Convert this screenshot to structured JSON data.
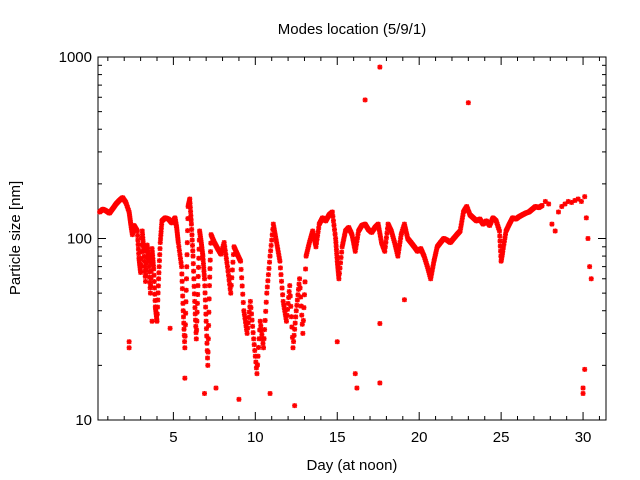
{
  "chart_data": {
    "type": "scatter",
    "title": "Modes location (5/9/1)",
    "xlabel": "Day (at noon)",
    "ylabel": "Particle size [nm]",
    "xlim": [
      0.4,
      31.4
    ],
    "ylim": [
      10,
      1000
    ],
    "y_scale": "log",
    "x_ticks": [
      5,
      10,
      15,
      20,
      25,
      30
    ],
    "x_tick_labels": [
      "5",
      "10",
      "15",
      "20",
      "25",
      "30"
    ],
    "y_ticks": [
      10,
      100,
      1000
    ],
    "y_tick_labels": [
      "10",
      "100",
      "1000"
    ],
    "grid": false,
    "legend": "none",
    "marker_color": "#ff0000",
    "series": [
      {
        "points": [
          [
            0.5,
            140
          ],
          [
            0.7,
            145
          ],
          [
            0.9,
            142
          ],
          [
            1.1,
            138
          ],
          [
            1.3,
            146
          ],
          [
            1.5,
            155
          ],
          [
            1.7,
            162
          ],
          [
            1.9,
            168
          ],
          [
            2.1,
            158
          ],
          [
            2.3,
            140
          ],
          [
            2.4,
            120
          ],
          [
            2.5,
            105
          ],
          [
            2.6,
            118
          ],
          [
            2.8,
            110
          ],
          [
            2.9,
            78
          ],
          [
            3.0,
            65
          ],
          [
            3.1,
            110
          ],
          [
            3.2,
            85
          ],
          [
            3.3,
            58
          ],
          [
            3.4,
            92
          ],
          [
            3.5,
            75
          ],
          [
            3.6,
            50
          ],
          [
            3.7,
            88
          ],
          [
            3.8,
            68
          ],
          [
            3.9,
            42
          ],
          [
            4.0,
            35
          ],
          [
            4.1,
            60
          ],
          [
            4.2,
            95
          ],
          [
            4.3,
            125
          ],
          [
            4.5,
            130
          ],
          [
            4.7,
            128
          ],
          [
            4.9,
            122
          ],
          [
            5.1,
            130
          ],
          [
            5.2,
            115
          ],
          [
            5.3,
            95
          ],
          [
            5.5,
            70
          ],
          [
            5.6,
            40
          ],
          [
            5.7,
            25
          ],
          [
            5.8,
            60
          ],
          [
            5.9,
            150
          ],
          [
            6.0,
            165
          ],
          [
            6.1,
            120
          ],
          [
            6.2,
            80
          ],
          [
            6.3,
            45
          ],
          [
            6.4,
            28
          ],
          [
            6.5,
            55
          ],
          [
            6.6,
            110
          ],
          [
            6.7,
            95
          ],
          [
            6.8,
            80
          ],
          [
            6.9,
            60
          ],
          [
            7.0,
            35
          ],
          [
            7.1,
            20
          ],
          [
            7.2,
            55
          ],
          [
            7.3,
            105
          ],
          [
            7.5,
            95
          ],
          [
            7.7,
            88
          ],
          [
            7.9,
            82
          ],
          [
            8.1,
            95
          ],
          [
            8.3,
            70
          ],
          [
            8.5,
            50
          ],
          [
            8.7,
            90
          ],
          [
            8.9,
            82
          ],
          [
            9.1,
            75
          ],
          [
            9.3,
            40
          ],
          [
            9.5,
            30
          ],
          [
            9.7,
            45
          ],
          [
            9.9,
            28
          ],
          [
            10.1,
            18
          ],
          [
            10.3,
            35
          ],
          [
            10.5,
            25
          ],
          [
            10.7,
            50
          ],
          [
            10.9,
            80
          ],
          [
            11.1,
            120
          ],
          [
            11.3,
            95
          ],
          [
            11.5,
            75
          ],
          [
            11.7,
            45
          ],
          [
            11.9,
            35
          ],
          [
            12.1,
            55
          ],
          [
            12.3,
            25
          ],
          [
            12.5,
            40
          ],
          [
            12.7,
            60
          ],
          [
            12.9,
            30
          ],
          [
            13.1,
            80
          ],
          [
            13.3,
            95
          ],
          [
            13.5,
            110
          ],
          [
            13.7,
            90
          ],
          [
            13.9,
            120
          ],
          [
            14.1,
            130
          ],
          [
            14.3,
            125
          ],
          [
            14.5,
            135
          ],
          [
            14.7,
            140
          ],
          [
            14.9,
            100
          ],
          [
            15.0,
            75
          ],
          [
            15.1,
            60
          ],
          [
            15.3,
            90
          ],
          [
            15.5,
            110
          ],
          [
            15.7,
            115
          ],
          [
            15.9,
            105
          ],
          [
            16.1,
            85
          ],
          [
            16.3,
            110
          ],
          [
            16.5,
            118
          ],
          [
            16.7,
            120
          ],
          [
            16.9,
            112
          ],
          [
            17.1,
            108
          ],
          [
            17.3,
            115
          ],
          [
            17.5,
            120
          ],
          [
            17.7,
            95
          ],
          [
            17.9,
            85
          ],
          [
            18.1,
            120
          ],
          [
            18.3,
            110
          ],
          [
            18.5,
            95
          ],
          [
            18.7,
            80
          ],
          [
            18.9,
            105
          ],
          [
            19.1,
            120
          ],
          [
            19.3,
            100
          ],
          [
            19.5,
            95
          ],
          [
            19.7,
            90
          ],
          [
            19.9,
            85
          ],
          [
            20.1,
            88
          ],
          [
            20.3,
            80
          ],
          [
            20.5,
            70
          ],
          [
            20.7,
            60
          ],
          [
            20.9,
            75
          ],
          [
            21.1,
            90
          ],
          [
            21.3,
            95
          ],
          [
            21.5,
            100
          ],
          [
            21.7,
            98
          ],
          [
            21.9,
            95
          ],
          [
            22.1,
            100
          ],
          [
            22.3,
            105
          ],
          [
            22.5,
            110
          ],
          [
            22.7,
            140
          ],
          [
            22.9,
            150
          ],
          [
            23.1,
            135
          ],
          [
            23.3,
            130
          ],
          [
            23.5,
            125
          ],
          [
            23.7,
            128
          ],
          [
            23.9,
            120
          ],
          [
            24.1,
            125
          ],
          [
            24.3,
            118
          ],
          [
            24.5,
            130
          ],
          [
            24.7,
            125
          ],
          [
            24.9,
            110
          ],
          [
            25.0,
            75
          ],
          [
            25.1,
            85
          ],
          [
            25.3,
            110
          ],
          [
            25.5,
            120
          ],
          [
            25.7,
            130
          ],
          [
            25.9,
            128
          ],
          [
            26.1,
            132
          ],
          [
            26.3,
            135
          ],
          [
            26.5,
            138
          ],
          [
            26.7,
            140
          ],
          [
            26.9,
            145
          ],
          [
            27.1,
            150
          ],
          [
            27.3,
            148
          ],
          [
            27.5,
            152
          ],
          [
            27.7,
            160
          ],
          [
            27.9,
            155
          ],
          [
            28.1,
            120
          ],
          [
            28.3,
            110
          ],
          [
            28.5,
            140
          ],
          [
            28.7,
            150
          ],
          [
            28.9,
            155
          ],
          [
            29.1,
            160
          ],
          [
            29.3,
            158
          ],
          [
            29.5,
            162
          ],
          [
            29.7,
            165
          ],
          [
            29.9,
            160
          ],
          [
            30.1,
            170
          ],
          [
            30.2,
            130
          ],
          [
            30.3,
            100
          ],
          [
            30.4,
            70
          ],
          [
            30.5,
            60
          ],
          [
            16.7,
            580
          ],
          [
            17.6,
            880
          ],
          [
            23.0,
            560
          ],
          [
            2.3,
            27
          ],
          [
            2.3,
            25
          ],
          [
            4.8,
            32
          ],
          [
            7.6,
            15
          ],
          [
            9.0,
            13
          ],
          [
            10.9,
            14
          ],
          [
            12.4,
            12
          ],
          [
            15.0,
            27
          ],
          [
            16.1,
            18
          ],
          [
            16.2,
            15
          ],
          [
            17.6,
            34
          ],
          [
            17.6,
            16
          ],
          [
            19.1,
            46
          ],
          [
            30.0,
            14
          ],
          [
            30.0,
            15
          ],
          [
            30.1,
            19
          ],
          [
            3.7,
            35
          ],
          [
            5.7,
            17
          ],
          [
            6.9,
            14
          ]
        ]
      }
    ]
  }
}
